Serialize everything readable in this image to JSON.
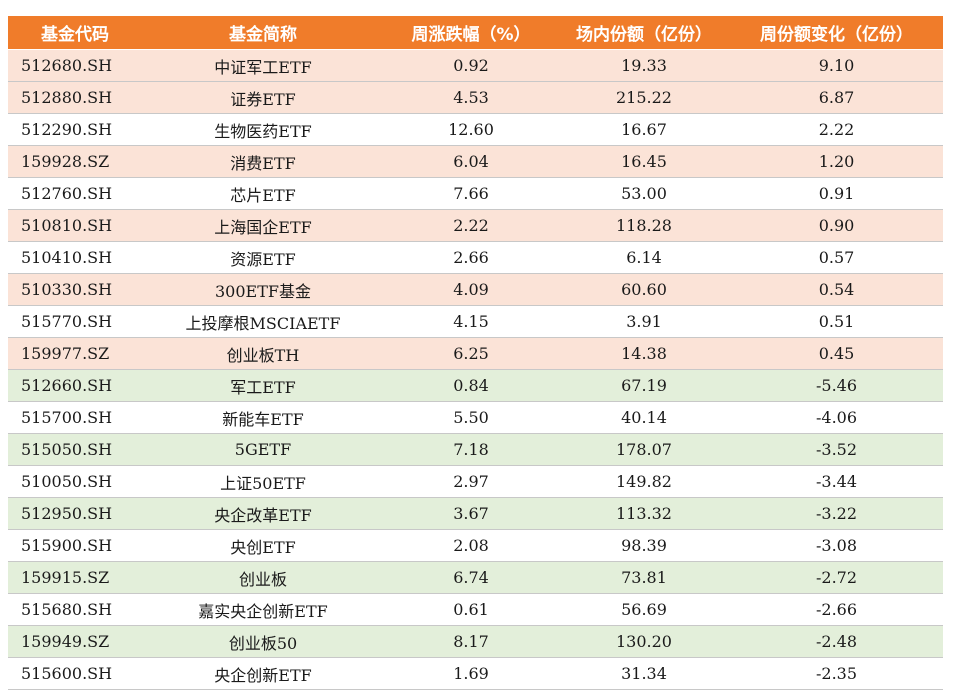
{
  "colors": {
    "header_bg": "#f07c2a",
    "header_text": "#ffffff",
    "row_tint_increase": "#fbe3d7",
    "row_tint_decrease": "#e3efda",
    "row_plain": "#ffffff"
  },
  "table": {
    "headers": [
      "基金代码",
      "基金简称",
      "周涨跌幅（%）",
      "场内份额（亿份）",
      "周份额变化（亿份）"
    ],
    "rows": [
      {
        "code": "512680.SH",
        "name": "中证军工ETF",
        "weekly_change_pct": "0.92",
        "shares": "19.33",
        "share_change": "9.10",
        "tint": "orange"
      },
      {
        "code": "512880.SH",
        "name": "证券ETF",
        "weekly_change_pct": "4.53",
        "shares": "215.22",
        "share_change": "6.87",
        "tint": "orange"
      },
      {
        "code": "512290.SH",
        "name": "生物医药ETF",
        "weekly_change_pct": "12.60",
        "shares": "16.67",
        "share_change": "2.22",
        "tint": "white"
      },
      {
        "code": "159928.SZ",
        "name": "消费ETF",
        "weekly_change_pct": "6.04",
        "shares": "16.45",
        "share_change": "1.20",
        "tint": "orange"
      },
      {
        "code": "512760.SH",
        "name": "芯片ETF",
        "weekly_change_pct": "7.66",
        "shares": "53.00",
        "share_change": "0.91",
        "tint": "white"
      },
      {
        "code": "510810.SH",
        "name": "上海国企ETF",
        "weekly_change_pct": "2.22",
        "shares": "118.28",
        "share_change": "0.90",
        "tint": "orange"
      },
      {
        "code": "510410.SH",
        "name": "资源ETF",
        "weekly_change_pct": "2.66",
        "shares": "6.14",
        "share_change": "0.57",
        "tint": "white"
      },
      {
        "code": "510330.SH",
        "name": "300ETF基金",
        "weekly_change_pct": "4.09",
        "shares": "60.60",
        "share_change": "0.54",
        "tint": "orange"
      },
      {
        "code": "515770.SH",
        "name": "上投摩根MSCIAETF",
        "weekly_change_pct": "4.15",
        "shares": "3.91",
        "share_change": "0.51",
        "tint": "white"
      },
      {
        "code": "159977.SZ",
        "name": "创业板TH",
        "weekly_change_pct": "6.25",
        "shares": "14.38",
        "share_change": "0.45",
        "tint": "orange"
      },
      {
        "code": "512660.SH",
        "name": "军工ETF",
        "weekly_change_pct": "0.84",
        "shares": "67.19",
        "share_change": "-5.46",
        "tint": "green"
      },
      {
        "code": "515700.SH",
        "name": "新能车ETF",
        "weekly_change_pct": "5.50",
        "shares": "40.14",
        "share_change": "-4.06",
        "tint": "white"
      },
      {
        "code": "515050.SH",
        "name": "5GETF",
        "weekly_change_pct": "7.18",
        "shares": "178.07",
        "share_change": "-3.52",
        "tint": "green"
      },
      {
        "code": "510050.SH",
        "name": "上证50ETF",
        "weekly_change_pct": "2.97",
        "shares": "149.82",
        "share_change": "-3.44",
        "tint": "white"
      },
      {
        "code": "512950.SH",
        "name": "央企改革ETF",
        "weekly_change_pct": "3.67",
        "shares": "113.32",
        "share_change": "-3.22",
        "tint": "green"
      },
      {
        "code": "515900.SH",
        "name": "央创ETF",
        "weekly_change_pct": "2.08",
        "shares": "98.39",
        "share_change": "-3.08",
        "tint": "white"
      },
      {
        "code": "159915.SZ",
        "name": "创业板",
        "weekly_change_pct": "6.74",
        "shares": "73.81",
        "share_change": "-2.72",
        "tint": "green"
      },
      {
        "code": "515680.SH",
        "name": "嘉实央企创新ETF",
        "weekly_change_pct": "0.61",
        "shares": "56.69",
        "share_change": "-2.66",
        "tint": "white"
      },
      {
        "code": "159949.SZ",
        "name": "创业板50",
        "weekly_change_pct": "8.17",
        "shares": "130.20",
        "share_change": "-2.48",
        "tint": "green"
      },
      {
        "code": "515600.SH",
        "name": "央企创新ETF",
        "weekly_change_pct": "1.69",
        "shares": "31.34",
        "share_change": "-2.35",
        "tint": "white"
      }
    ]
  }
}
